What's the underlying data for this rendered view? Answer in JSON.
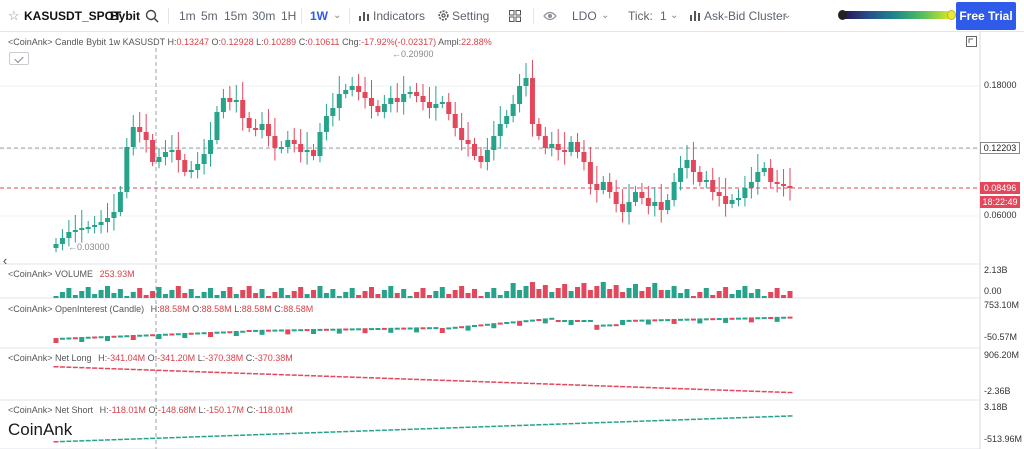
{
  "toolbar": {
    "symbol": "KASUSDT_SPOT",
    "exchange": "Bybit",
    "timeframes": [
      "1m",
      "5m",
      "15m",
      "30m",
      "1H",
      "1W"
    ],
    "active_timeframe": "1W",
    "indicators_label": "Indicators",
    "setting_label": "Setting",
    "mode_label": "LDO",
    "tick_label": "Tick:",
    "tick_value": "1",
    "cluster_label": "Ask-Bid Cluster",
    "free_trial_label": "Free Trial",
    "colors": {
      "accent": "#2f5bea",
      "up": "#26a38a",
      "down": "#e3475b"
    }
  },
  "chart": {
    "candle_pane": {
      "source": "<CoinAnk> Candle",
      "pair": "Bybit 1w KASUSDT",
      "h_label": "H:",
      "h": "0.13247",
      "o_label": "O:",
      "o": "0.12928",
      "l_label": "L:",
      "l": "0.10289",
      "c_label": "C:",
      "c": "0.10611",
      "chg_label": "Chg:",
      "chg": "-17.92%(-0.02317)",
      "ampl_label": "Ampl:",
      "ampl": "22.88%",
      "high_marker": "0.20900",
      "low_marker": "0.03000",
      "axis": [
        "0.18000",
        "0.12203",
        "0.06000"
      ],
      "crosshair_price": "0.12203",
      "last_price": "0.08496",
      "countdown": "18:22:49"
    },
    "volume_pane": {
      "label": "<CoinAnk> VOLUME",
      "value": "253.93M",
      "axis": [
        "2.13B",
        "0.00"
      ]
    },
    "oi_pane": {
      "label": "<CoinAnk> OpenInterest (Candle)",
      "h_label": "H:",
      "h": "88.58M",
      "o_label": "O:",
      "o": "88.58M",
      "l_label": "L:",
      "l": "88.58M",
      "c_label": "C:",
      "c": "88.58M",
      "axis": [
        "753.10M",
        "-50.57M"
      ]
    },
    "net_long_pane": {
      "label": "<CoinAnk> Net Long",
      "h_label": "H:",
      "h": "-341.04M",
      "o_label": "O:",
      "o": "-341.20M",
      "l_label": "L:",
      "l": "-370.38M",
      "c_label": "C:",
      "c": "-370.38M",
      "axis": [
        "906.20M",
        "-2.36B"
      ]
    },
    "net_short_pane": {
      "label": "<CoinAnk> Net Short",
      "h_label": "H:",
      "h": "-118.01M",
      "o_label": "O:",
      "o": "-148.68M",
      "l_label": "L:",
      "l": "-150.17M",
      "c_label": "C:",
      "c": "-118.01M",
      "axis": [
        "3.18B",
        "-513.96M"
      ]
    },
    "watermark": "CoinAnk"
  },
  "icons": {
    "search": "search-icon",
    "indicators": "bar-chart-icon",
    "setting": "gear-icon",
    "layout": "grid-icon",
    "eye": "eye-icon",
    "star": "star-icon",
    "settings_square": "settings-square-icon",
    "fullscreen": "fullscreen-icon",
    "collapse": "chevron-left-icon"
  }
}
